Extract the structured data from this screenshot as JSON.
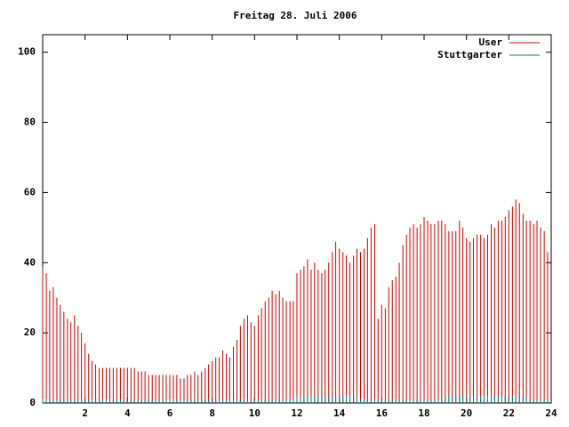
{
  "chart_data": {
    "type": "impulse",
    "title": "Freitag 28. Juli 2006",
    "x": [
      0,
      0.17,
      0.33,
      0.5,
      0.67,
      0.83,
      1,
      1.17,
      1.33,
      1.5,
      1.67,
      1.83,
      2,
      2.17,
      2.33,
      2.5,
      2.67,
      2.83,
      3,
      3.17,
      3.33,
      3.5,
      3.67,
      3.83,
      4,
      4.17,
      4.33,
      4.5,
      4.67,
      4.83,
      5,
      5.17,
      5.33,
      5.5,
      5.67,
      5.83,
      6,
      6.17,
      6.33,
      6.5,
      6.67,
      6.83,
      7,
      7.17,
      7.33,
      7.5,
      7.67,
      7.83,
      8,
      8.17,
      8.33,
      8.5,
      8.67,
      8.83,
      9,
      9.17,
      9.33,
      9.5,
      9.67,
      9.83,
      10,
      10.17,
      10.33,
      10.5,
      10.67,
      10.83,
      11,
      11.17,
      11.33,
      11.5,
      11.67,
      11.83,
      12,
      12.17,
      12.33,
      12.5,
      12.67,
      12.83,
      13,
      13.17,
      13.33,
      13.5,
      13.67,
      13.83,
      14,
      14.17,
      14.33,
      14.5,
      14.67,
      14.83,
      15,
      15.17,
      15.33,
      15.5,
      15.67,
      15.83,
      16,
      16.17,
      16.33,
      16.5,
      16.67,
      16.83,
      17,
      17.17,
      17.33,
      17.5,
      17.67,
      17.83,
      18,
      18.17,
      18.33,
      18.5,
      18.67,
      18.83,
      19,
      19.17,
      19.33,
      19.5,
      19.67,
      19.83,
      20,
      20.17,
      20.33,
      20.5,
      20.67,
      20.83,
      21,
      21.17,
      21.33,
      21.5,
      21.67,
      21.83,
      22,
      22.17,
      22.33,
      22.5,
      22.67,
      22.83,
      23,
      23.17,
      23.33,
      23.5,
      23.67,
      23.83
    ],
    "series": [
      {
        "name": "User",
        "color": "#cc0000",
        "values": [
          39,
          37,
          32,
          33,
          30,
          28,
          26,
          24,
          23,
          25,
          22,
          20,
          17,
          14,
          12,
          11,
          10,
          10,
          10,
          10,
          10,
          10,
          10,
          10,
          10,
          10,
          10,
          9,
          9,
          9,
          8,
          8,
          8,
          8,
          8,
          8,
          8,
          8,
          8,
          7,
          7,
          8,
          8,
          9,
          8,
          9,
          10,
          11,
          12,
          13,
          13,
          15,
          14,
          13,
          16,
          18,
          22,
          24,
          25,
          23,
          22,
          25,
          27,
          29,
          30,
          32,
          31,
          32,
          30,
          29,
          29,
          29,
          37,
          38,
          39,
          41,
          38,
          40,
          38,
          37,
          38,
          40,
          43,
          46,
          44,
          43,
          42,
          40,
          42,
          44,
          43,
          44,
          47,
          50,
          51,
          24,
          28,
          27,
          33,
          35,
          36,
          40,
          45,
          48,
          50,
          51,
          50,
          51,
          53,
          52,
          51,
          51,
          52,
          52,
          51,
          49,
          49,
          49,
          52,
          50,
          47,
          46,
          47,
          48,
          48,
          47,
          48,
          51,
          50,
          52,
          52,
          53,
          55,
          56,
          58,
          57,
          54,
          52,
          52,
          51,
          52,
          50,
          49,
          43
        ]
      },
      {
        "name": "Stuttgarter",
        "color": "#008080",
        "values": [
          1,
          1,
          1,
          1,
          1,
          1,
          1,
          1,
          1,
          1,
          1,
          1,
          1,
          1,
          1,
          1,
          1,
          1,
          1,
          1,
          1,
          1,
          1,
          1,
          1,
          1,
          1,
          1,
          1,
          1,
          1,
          1,
          1,
          1,
          1,
          1,
          1,
          1,
          1,
          1,
          1,
          1,
          1,
          1,
          1,
          1,
          1,
          1,
          1,
          1,
          1,
          1,
          1,
          1,
          1,
          1,
          1,
          1,
          1,
          1,
          1,
          1,
          1,
          1,
          1,
          1,
          1,
          1,
          1,
          1,
          1,
          1,
          2,
          2,
          2,
          2,
          2,
          2,
          2,
          2,
          2,
          2,
          2,
          2,
          2,
          2,
          2,
          2,
          2,
          2,
          1,
          1,
          1,
          1,
          1,
          1,
          1,
          1,
          1,
          1,
          1,
          1,
          1,
          1,
          1,
          1,
          1,
          1,
          1,
          1,
          1,
          1,
          1,
          1,
          2,
          2,
          2,
          2,
          2,
          2,
          2,
          2,
          2,
          2,
          2,
          2,
          2,
          2,
          2,
          2,
          2,
          2,
          2,
          2,
          2,
          2,
          2,
          2,
          1,
          1,
          1,
          1,
          1,
          1
        ]
      }
    ],
    "xlim": [
      0,
      24
    ],
    "xticks": [
      2,
      4,
      6,
      8,
      10,
      12,
      14,
      16,
      18,
      20,
      22,
      24
    ],
    "ylim": [
      0,
      105
    ],
    "yticks": [
      0,
      20,
      40,
      60,
      80,
      100
    ],
    "legend": "top-right"
  }
}
